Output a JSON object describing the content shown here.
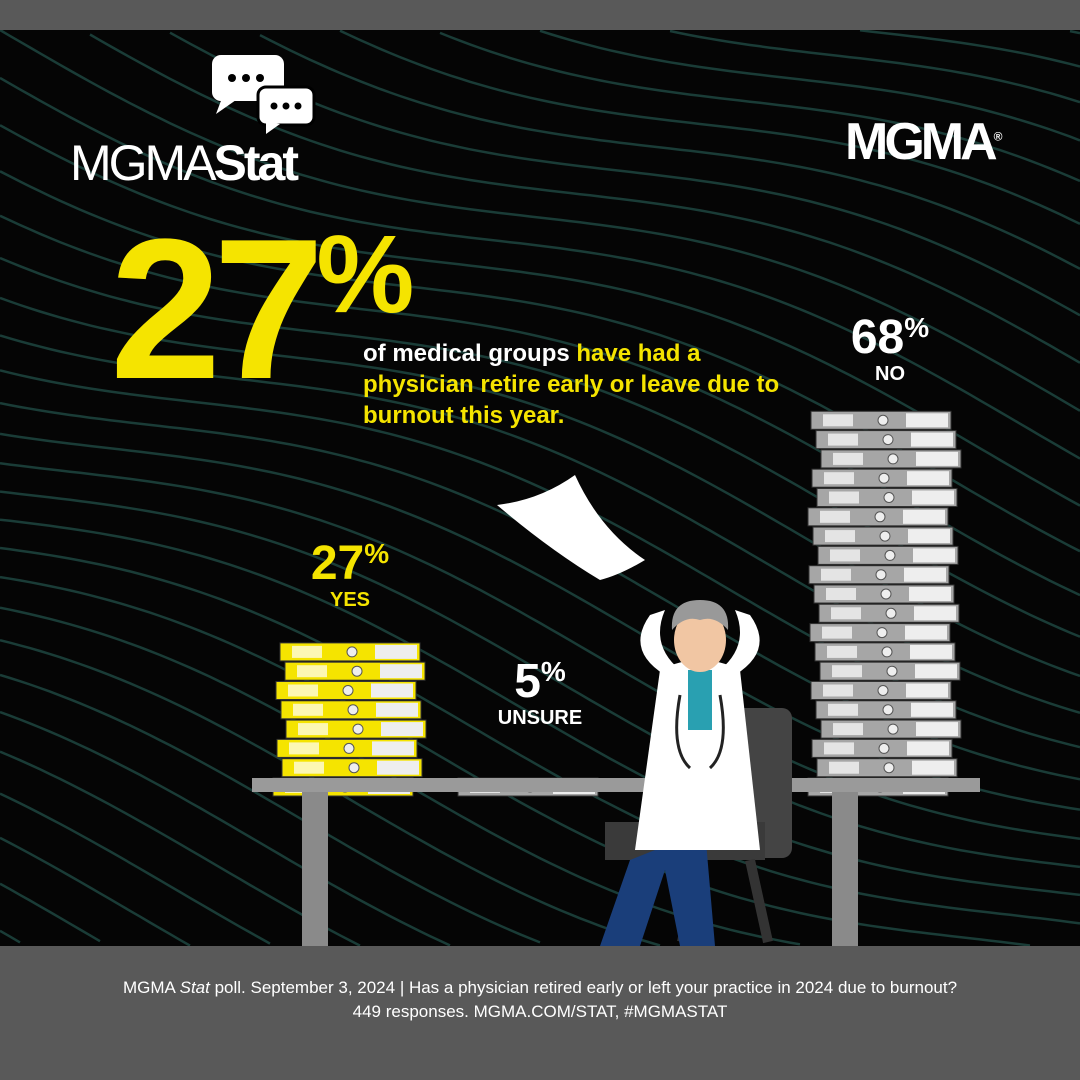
{
  "branding": {
    "left_logo_thin": "MGMA",
    "left_logo_bold": "Stat",
    "right_logo": "MGMA",
    "right_logo_mark": "®"
  },
  "headline": {
    "big_value": "27",
    "big_sign": "%",
    "text_white": "of medical groups ",
    "text_yellow": "have had a physician retire early or leave due to burnout this year."
  },
  "chart_data": {
    "type": "bar",
    "categories": [
      "YES",
      "UNSURE",
      "NO"
    ],
    "values": [
      27,
      5,
      68
    ],
    "value_labels": [
      "27",
      "5",
      "68"
    ],
    "unit": "%",
    "colors": [
      "#f5e400",
      "#a6a6a6",
      "#a6a6a6"
    ]
  },
  "footer": {
    "line1_a": "MGMA ",
    "line1_italic": "Stat",
    "line1_b": " poll. September 3, 2024  |  Has a physician retired early or left your practice in 2024 due to burnout?",
    "line2": "449 responses. MGMA.COM/STAT, #MGMASTAT"
  },
  "colors": {
    "accent": "#f5e400",
    "background": "#050505",
    "frame": "#595959",
    "wave": "#1f4a44"
  }
}
